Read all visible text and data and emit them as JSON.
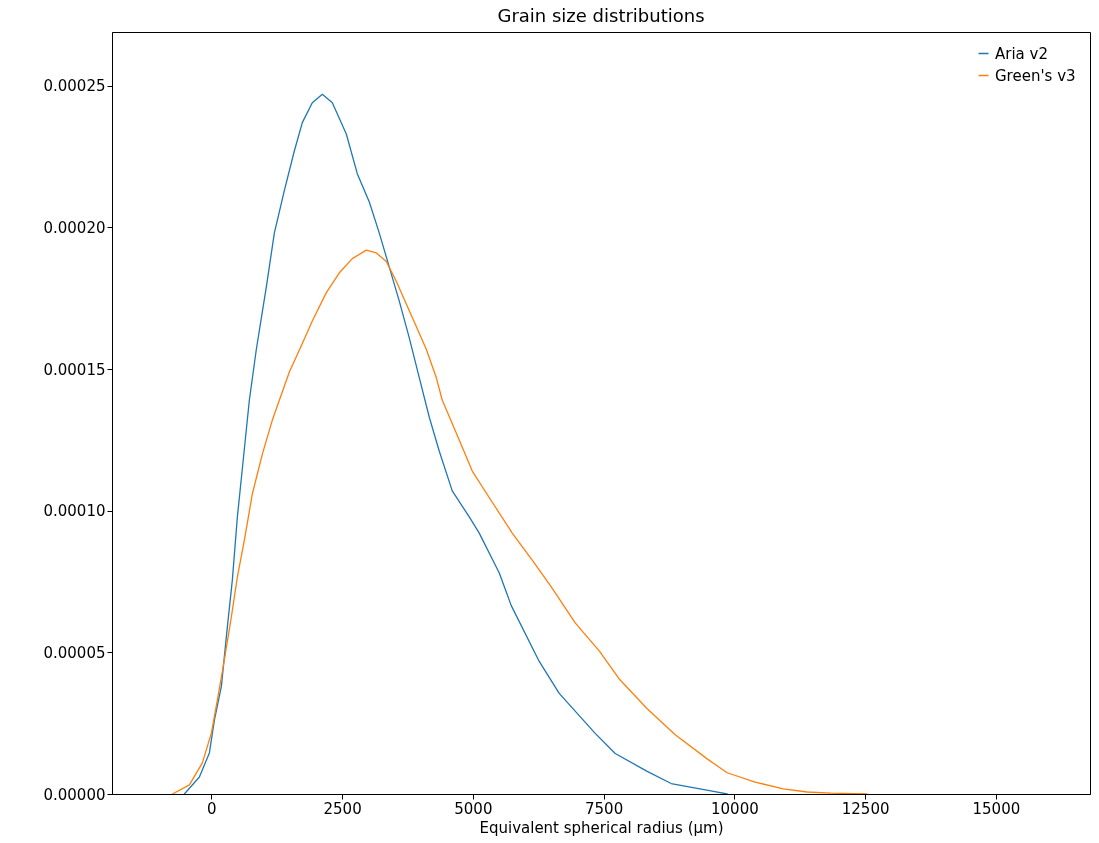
{
  "chart_data": {
    "type": "line",
    "title": "Grain size distributions",
    "xlabel": "Equivalent spherical radius (μm)",
    "xlim": [
      -1900,
      16800
    ],
    "ylim": [
      0,
      0.000269
    ],
    "xticks": [
      0,
      2500,
      5000,
      7500,
      10000,
      12500,
      15000
    ],
    "yticks": [
      {
        "value": 0,
        "label": "0.00000"
      },
      {
        "value": 5e-05,
        "label": "0.00005"
      },
      {
        "value": 0.0001,
        "label": "0.00010"
      },
      {
        "value": 0.00015,
        "label": "0.00015"
      },
      {
        "value": 0.0002,
        "label": "0.00020"
      },
      {
        "value": 0.00025,
        "label": "0.00025"
      }
    ],
    "grid": false,
    "legend": "top right",
    "series": [
      {
        "name": "Aria v2",
        "color": "#1f77b4",
        "x": [
          -516,
          -229,
          -38,
          57,
          191,
          306,
          401,
          497,
          593,
          726,
          860,
          1051,
          1204,
          1395,
          1586,
          1739,
          1930,
          2122,
          2313,
          2580,
          2790,
          3020,
          3211,
          3402,
          3593,
          3784,
          3975,
          4167,
          4358,
          4606,
          4931,
          5122,
          5505,
          5734,
          6269,
          6651,
          7339,
          7722,
          8333,
          8792,
          9550,
          9862
        ],
        "values": [
          0,
          6e-06,
          1.45e-05,
          2.6e-05,
          3.8e-05,
          5.9e-05,
          7.55e-05,
          9.78e-05,
          0.000115,
          0.000139,
          0.000157,
          0.000179,
          0.000198,
          0.000213,
          0.000227,
          0.000237,
          0.000244,
          0.000247,
          0.000244,
          0.000233,
          0.000219,
          0.000209,
          0.000198,
          0.000186,
          0.000174,
          0.000161,
          0.000147,
          0.000133,
          0.000121,
          0.000107,
          9.78e-05,
          9.21e-05,
          7.8e-05,
          6.65e-05,
          4.68e-05,
          3.55e-05,
          2.14e-05,
          1.43e-05,
          8e-06,
          3.7e-06,
          1.1e-06,
          0
        ]
      },
      {
        "name": "Green's v3",
        "color": "#ff7f0e",
        "x": [
          -745,
          -420,
          -172,
          0,
          115,
          248,
          382,
          497,
          631,
          784,
          975,
          1166,
          1491,
          1739,
          1930,
          2198,
          2447,
          2695,
          2963,
          3154,
          3345,
          3536,
          3727,
          3918,
          4109,
          4300,
          4415,
          4740,
          4988,
          5371,
          5753,
          6135,
          6499,
          6957,
          7416,
          7798,
          8333,
          8869,
          9480,
          9862,
          10398,
          10933,
          11391,
          11850,
          12538
        ],
        "values": [
          0,
          3.2e-06,
          1.1e-05,
          2.15e-05,
          3.32e-05,
          4.73e-05,
          6.25e-05,
          7.66e-05,
          8.96e-05,
          0.000106,
          0.00012,
          0.000132,
          0.000149,
          0.000159,
          0.000167,
          0.000177,
          0.000184,
          0.000189,
          0.000192,
          0.000191,
          0.000188,
          0.000181,
          0.000173,
          0.000165,
          0.000157,
          0.000147,
          0.000139,
          0.000125,
          0.000114,
          0.000103,
          9.21e-05,
          8.26e-05,
          7.31e-05,
          6.04e-05,
          5.05e-05,
          4.06e-05,
          3.01e-05,
          2.09e-05,
          1.24e-05,
          7.5e-06,
          4.2e-06,
          1.8e-06,
          7e-07,
          3e-07,
          0
        ]
      }
    ]
  }
}
